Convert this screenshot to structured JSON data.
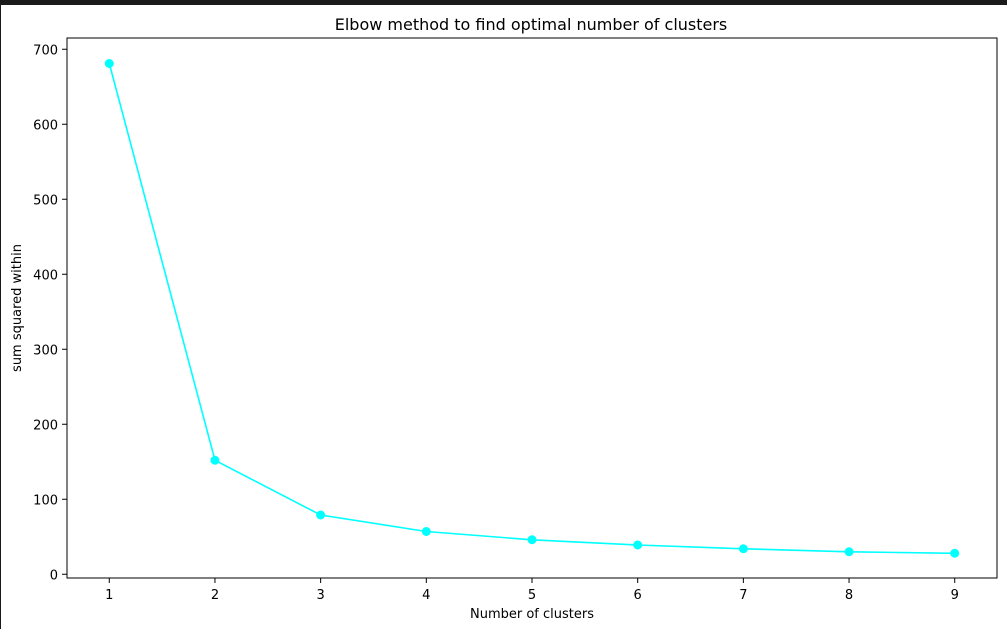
{
  "chart_data": {
    "type": "line",
    "title": "Elbow method to find optimal number of clusters",
    "xlabel": "Number of clusters",
    "ylabel": "sum squared within",
    "x": [
      1,
      2,
      3,
      4,
      5,
      6,
      7,
      8,
      9
    ],
    "series": [
      {
        "values": [
          681,
          152,
          79,
          57,
          46,
          39,
          34,
          30,
          28
        ],
        "color": "#00ffff",
        "marker": "circle"
      }
    ],
    "xticks": [
      "1",
      "2",
      "3",
      "4",
      "5",
      "6",
      "7",
      "8",
      "9"
    ],
    "yticks": [
      "0",
      "100",
      "200",
      "300",
      "400",
      "500",
      "600",
      "700"
    ],
    "xlim": [
      0.6,
      9.4
    ],
    "ylim": [
      -5,
      715
    ],
    "grid": false,
    "legend": "none"
  }
}
